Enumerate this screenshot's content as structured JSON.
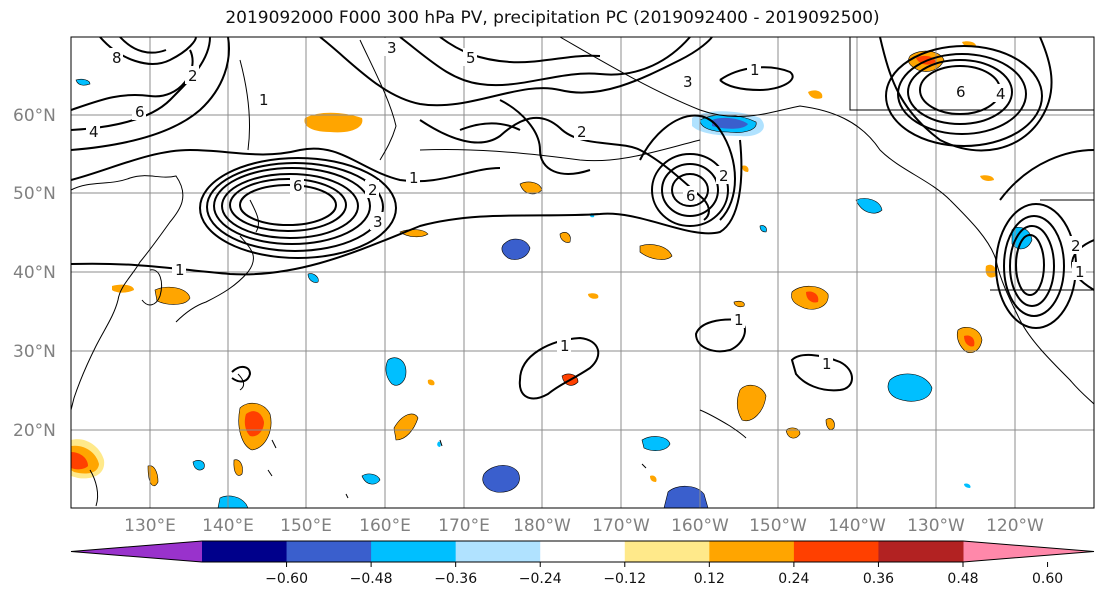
{
  "title": "2019092000 F000 300 hPa PV, precipitation PC (2019092400 - 2019092500)",
  "lat_labels": [
    "60°N",
    "50°N",
    "40°N",
    "30°N",
    "20°N"
  ],
  "lon_labels": [
    "130°E",
    "140°E",
    "150°E",
    "160°E",
    "170°E",
    "180°W",
    "170°W",
    "160°W",
    "150°W",
    "140°W",
    "130°W",
    "120°W"
  ],
  "colorbar": {
    "colors": [
      "#9932CC",
      "#00008B",
      "#3A5FCD",
      "#00BFFF",
      "#B0E2FF",
      "#FFFFFF",
      "#FFE98A",
      "#FFA500",
      "#FF4000",
      "#B22222",
      "#FF88AA"
    ],
    "ticks": [
      "−0.60",
      "−0.48",
      "−0.36",
      "−0.24",
      "−0.12",
      "0.12",
      "0.24",
      "0.36",
      "0.48",
      "0.60"
    ]
  },
  "contour_labels": [
    "8",
    "6",
    "4",
    "1",
    "2",
    "3",
    "5",
    "1",
    "3",
    "2",
    "6",
    "1",
    "3",
    "2",
    "6",
    "2",
    "1",
    "1",
    "1",
    "1",
    "4",
    "6",
    "2",
    "1"
  ]
}
